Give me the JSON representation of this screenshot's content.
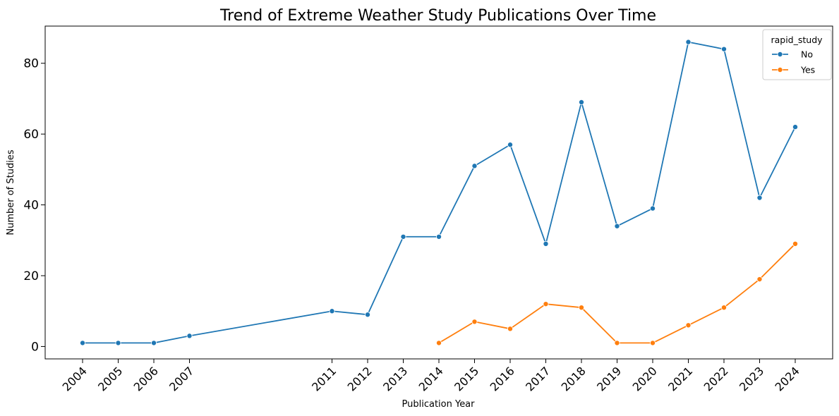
{
  "chart_data": {
    "type": "line",
    "title": "Trend of Extreme Weather Study Publications Over Time",
    "xlabel": "Publication Year",
    "ylabel": "Number of Studies",
    "xlim": [
      2002.95,
      2025.05
    ],
    "ylim": [
      -3.5,
      90.5
    ],
    "x_ticks": [
      2004,
      2005,
      2006,
      2007,
      2011,
      2012,
      2013,
      2014,
      2015,
      2016,
      2017,
      2018,
      2019,
      2020,
      2021,
      2022,
      2023,
      2024
    ],
    "y_ticks": [
      0,
      20,
      40,
      60,
      80
    ],
    "grid": false,
    "legend": {
      "title": "rapid_study",
      "placement": "top-right"
    },
    "series": [
      {
        "name": "No",
        "color": "#1f77b4",
        "points": [
          {
            "x": 2004,
            "y": 1
          },
          {
            "x": 2005,
            "y": 1
          },
          {
            "x": 2006,
            "y": 1
          },
          {
            "x": 2007,
            "y": 3
          },
          {
            "x": 2011,
            "y": 10
          },
          {
            "x": 2012,
            "y": 9
          },
          {
            "x": 2013,
            "y": 31
          },
          {
            "x": 2014,
            "y": 31
          },
          {
            "x": 2015,
            "y": 51
          },
          {
            "x": 2016,
            "y": 57
          },
          {
            "x": 2017,
            "y": 29
          },
          {
            "x": 2018,
            "y": 69
          },
          {
            "x": 2019,
            "y": 34
          },
          {
            "x": 2020,
            "y": 39
          },
          {
            "x": 2021,
            "y": 86
          },
          {
            "x": 2022,
            "y": 84
          },
          {
            "x": 2023,
            "y": 42
          },
          {
            "x": 2024,
            "y": 62
          }
        ]
      },
      {
        "name": "Yes",
        "color": "#ff7f0e",
        "points": [
          {
            "x": 2014,
            "y": 1
          },
          {
            "x": 2015,
            "y": 7
          },
          {
            "x": 2016,
            "y": 5
          },
          {
            "x": 2017,
            "y": 12
          },
          {
            "x": 2018,
            "y": 11
          },
          {
            "x": 2019,
            "y": 1
          },
          {
            "x": 2020,
            "y": 1
          },
          {
            "x": 2021,
            "y": 6
          },
          {
            "x": 2022,
            "y": 11
          },
          {
            "x": 2023,
            "y": 19
          },
          {
            "x": 2024,
            "y": 29
          }
        ]
      }
    ]
  }
}
